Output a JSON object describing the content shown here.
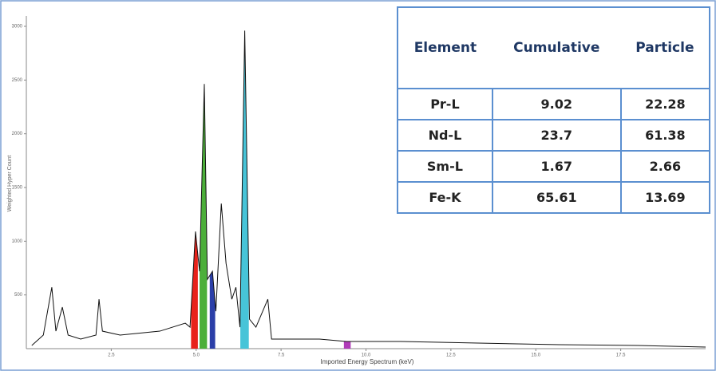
{
  "chart_data": {
    "type": "line",
    "xlabel": "Imported Energy Spectrum (keV)",
    "ylabel": "Weighted Hyper Count",
    "color": "#111111",
    "x": [
      0.16,
      0.5,
      0.75,
      0.87,
      1.06,
      1.23,
      1.6,
      2.05,
      2.14,
      2.24,
      2.76,
      3.93,
      4.68,
      4.82,
      4.98,
      5.1,
      5.24,
      5.33,
      5.48,
      5.58,
      5.74,
      5.88,
      6.05,
      6.17,
      6.29,
      6.43,
      6.57,
      6.76,
      7.11,
      7.22,
      8.63,
      9.43,
      11.0,
      13.3,
      15.7,
      18.0,
      20.0
    ],
    "values": [
      30,
      126,
      571,
      163,
      386,
      126,
      89,
      126,
      460,
      163,
      126,
      163,
      237,
      200,
      1090,
      720,
      2463,
      645,
      720,
      348,
      1350,
      794,
      460,
      571,
      200,
      2960,
      274,
      200,
      460,
      89,
      89,
      67,
      67,
      52,
      37,
      30,
      15
    ],
    "bands": [
      {
        "color": "#e8221b",
        "x": [
          4.85,
          5.05
        ]
      },
      {
        "color": "#4caf3a",
        "x": [
          5.1,
          5.32
        ]
      },
      {
        "color": "#2b3fa8",
        "x": [
          5.4,
          5.56
        ]
      },
      {
        "color": "#47c4d8",
        "x": [
          6.3,
          6.55
        ]
      },
      {
        "color": "#b03cb8",
        "x": [
          9.35,
          9.55
        ]
      }
    ],
    "xlim": [
      0,
      20
    ],
    "xticks": [
      2.5,
      {
        "value": 5,
        "label": "5.0"
      },
      7.5,
      {
        "value": 10,
        "label": "10.0"
      },
      12.5,
      {
        "value": 15,
        "label": "15.0"
      },
      17.5
    ],
    "ylim": [
      0,
      3000
    ],
    "yticks": [
      500,
      1000,
      1500,
      2000,
      2500,
      3000
    ]
  },
  "table": {
    "header": [
      "Element",
      "Cumulative",
      "Particle"
    ],
    "rows": [
      [
        "Pr-L",
        "9.02",
        "22.28"
      ],
      [
        "Nd-L",
        "23.7",
        "61.38"
      ],
      [
        "Sm-L",
        "1.67",
        "2.66"
      ],
      [
        "Fe-K",
        "65.61",
        "13.69"
      ]
    ]
  }
}
